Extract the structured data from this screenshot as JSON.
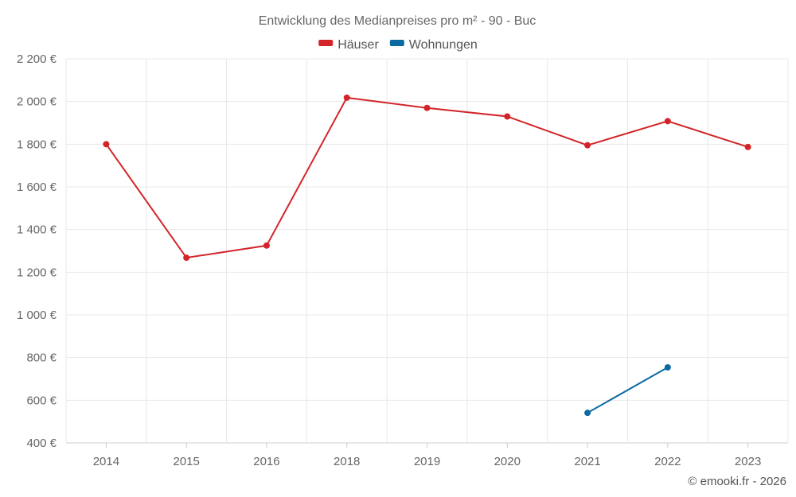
{
  "chart_data": {
    "type": "line",
    "title": "Entwicklung des Medianpreises pro m² - 90 - Buc",
    "categories": [
      "2014",
      "2015",
      "2016",
      "2018",
      "2019",
      "2020",
      "2021",
      "2022",
      "2023"
    ],
    "y_ticks": [
      "400 €",
      "600 €",
      "800 €",
      "1 000 €",
      "1 200 €",
      "1 400 €",
      "1 600 €",
      "1 800 €",
      "2 000 €",
      "2 200 €"
    ],
    "ylim": [
      400,
      2200
    ],
    "y_step": 200,
    "grid": true,
    "legend_position": "top-center",
    "series": [
      {
        "name": "Häuser",
        "color": "#d32529",
        "values": [
          1800,
          1268,
          1325,
          2018,
          1970,
          1930,
          1795,
          1908,
          1787
        ]
      },
      {
        "name": "Wohnungen",
        "color": "#0b6aa2",
        "values": [
          null,
          null,
          null,
          null,
          null,
          null,
          541,
          754,
          null
        ]
      }
    ]
  },
  "credit": "© emooki.fr - 2026"
}
